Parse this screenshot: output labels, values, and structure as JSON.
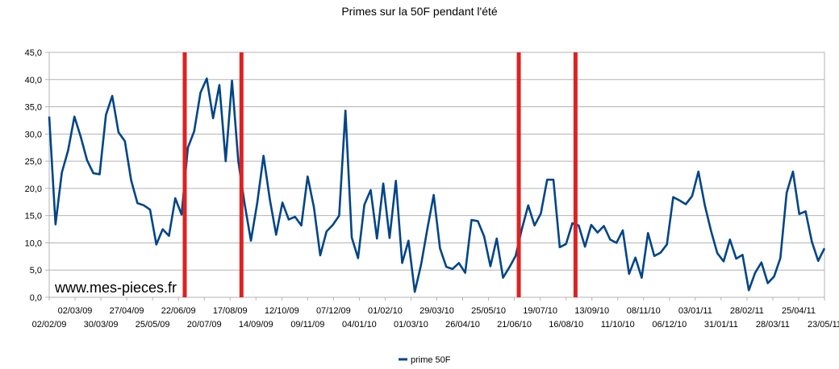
{
  "chart_data": {
    "type": "line",
    "title": "Primes sur la 50F pendant l'été",
    "xlabel": "",
    "ylabel": "",
    "ylim": [
      0,
      45
    ],
    "yticks": [
      "0,0",
      "5,0",
      "10,0",
      "15,0",
      "20,0",
      "25,0",
      "30,0",
      "35,0",
      "40,0",
      "45,0"
    ],
    "x_tick_labels": [
      "02/02/09",
      "02/03/09",
      "30/03/09",
      "27/04/09",
      "25/05/09",
      "22/06/09",
      "20/07/09",
      "17/08/09",
      "14/09/09",
      "12/10/09",
      "09/11/09",
      "07/12/09",
      "04/01/10",
      "01/02/10",
      "01/03/10",
      "29/03/10",
      "26/04/10",
      "25/05/10",
      "21/06/10",
      "19/07/10",
      "16/08/10",
      "13/09/10",
      "11/10/10",
      "08/11/10",
      "06/12/10",
      "03/01/11",
      "31/01/11",
      "28/02/11",
      "28/03/11",
      "25/04/11",
      "23/05/11"
    ],
    "grid": true,
    "legend_position": "bottom",
    "series": [
      {
        "name": "prime 50F",
        "color": "#004586",
        "values": [
          33.2,
          13.4,
          22.9,
          27.0,
          33.2,
          29.5,
          25.2,
          22.8,
          22.6,
          33.5,
          37.0,
          30.3,
          28.7,
          21.5,
          17.3,
          16.9,
          16.1,
          9.7,
          12.5,
          11.3,
          18.2,
          15.2,
          27.5,
          30.5,
          37.6,
          40.2,
          32.9,
          39.0,
          25.0,
          39.8,
          25.0,
          17.2,
          10.4,
          17.3,
          26.0,
          18.0,
          11.5,
          17.4,
          14.3,
          14.8,
          13.2,
          22.2,
          16.5,
          7.7,
          12.1,
          13.3,
          15.0,
          34.3,
          11.0,
          7.2,
          17.0,
          19.7,
          10.8,
          20.9,
          10.9,
          21.4,
          6.3,
          10.4,
          1.0,
          6.0,
          12.6,
          18.8,
          9.0,
          5.6,
          5.2,
          6.3,
          4.5,
          14.2,
          14.0,
          11.2,
          5.7,
          10.8,
          3.6,
          5.5,
          7.6,
          12.6,
          16.9,
          13.2,
          15.4,
          21.6,
          21.6,
          9.2,
          9.8,
          13.6,
          13.2,
          9.3,
          13.3,
          11.9,
          13.1,
          10.6,
          10.0,
          12.3,
          4.3,
          7.3,
          3.6,
          11.8,
          7.6,
          8.2,
          9.7,
          18.4,
          17.8,
          17.1,
          18.6,
          23.1,
          17.0,
          12.2,
          8.1,
          6.6,
          10.6,
          7.1,
          7.8,
          1.3,
          4.5,
          6.4,
          2.6,
          3.8,
          7.2,
          19.2,
          23.1,
          15.3,
          15.8,
          10.2,
          6.7,
          9.0
        ]
      }
    ],
    "summer_markers": [
      21.5,
      30.5,
      74.5,
      83.5
    ],
    "marker_color": "#dd2222",
    "watermark": "www.mes-pieces.fr"
  }
}
